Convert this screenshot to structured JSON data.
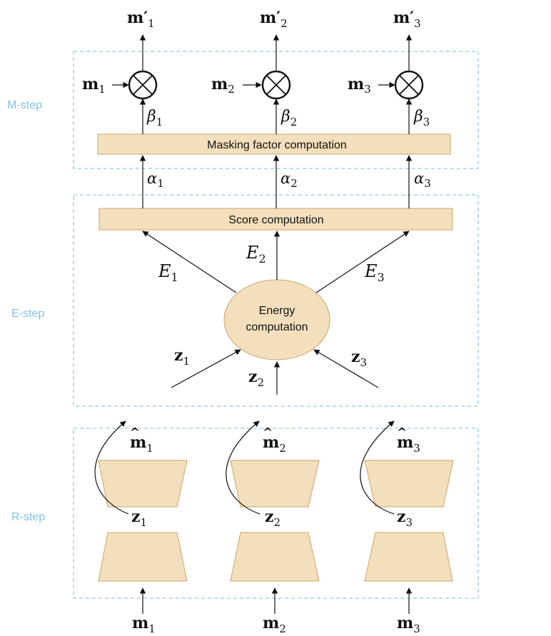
{
  "colors": {
    "stage_border": "#8fc9ea",
    "stage_label": "#7fc1e6",
    "box_fill": "#f4dfbd",
    "box_stroke": "#c9a46a",
    "line": "#111111"
  },
  "stages": {
    "m_step": "M-step",
    "e_step": "E-step",
    "r_step": "R-step"
  },
  "boxes": {
    "masking": "Masking factor computation",
    "score": "Score computation",
    "energy_line1": "Energy",
    "energy_line2": "computation"
  },
  "symbols": {
    "m": "m",
    "z": "z",
    "E": "E",
    "alpha": "α",
    "beta": "β",
    "prime": "′",
    "hat": "^",
    "idx": [
      "1",
      "2",
      "3"
    ]
  }
}
